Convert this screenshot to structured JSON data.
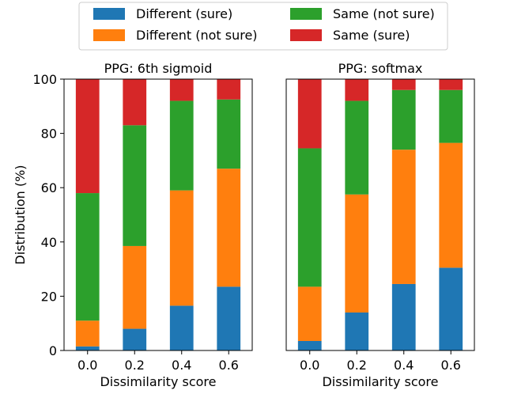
{
  "legend": {
    "position": "top-center",
    "entries": [
      {
        "name": "Different (sure)",
        "color": "#1f77b4"
      },
      {
        "name": "Different (not sure)",
        "color": "#ff7f0e"
      },
      {
        "name": "Same (not sure)",
        "color": "#2ca02c"
      },
      {
        "name": "Same (sure)",
        "color": "#d62728"
      }
    ]
  },
  "chart_data": [
    {
      "type": "bar",
      "stacked": true,
      "title": "PPG: 6th sigmoid",
      "xlabel": "Dissimilarity score",
      "ylabel": "Distribution (%)",
      "ylim": [
        0,
        100
      ],
      "yticks": [
        "0",
        "20",
        "40",
        "60",
        "80",
        "100"
      ],
      "categories": [
        "0.0",
        "0.2",
        "0.4",
        "0.6"
      ],
      "series": [
        {
          "name": "Different (sure)",
          "color": "#1f77b4",
          "values": [
            1.5,
            8,
            16.5,
            23.5
          ]
        },
        {
          "name": "Different (not sure)",
          "color": "#ff7f0e",
          "values": [
            9.5,
            30.5,
            42.5,
            43.5
          ]
        },
        {
          "name": "Same (not sure)",
          "color": "#2ca02c",
          "values": [
            47,
            44.5,
            33,
            25.5
          ]
        },
        {
          "name": "Same (sure)",
          "color": "#d62728",
          "values": [
            42,
            17,
            8,
            7.5
          ]
        }
      ]
    },
    {
      "type": "bar",
      "stacked": true,
      "title": "PPG: softmax",
      "xlabel": "Dissimilarity score",
      "ylabel": "",
      "ylim": [
        0,
        100
      ],
      "yticks": [],
      "categories": [
        "0.0",
        "0.2",
        "0.4",
        "0.6"
      ],
      "series": [
        {
          "name": "Different (sure)",
          "color": "#1f77b4",
          "values": [
            3.5,
            14,
            24.5,
            30.5
          ]
        },
        {
          "name": "Different (not sure)",
          "color": "#ff7f0e",
          "values": [
            20,
            43.5,
            49.5,
            46
          ]
        },
        {
          "name": "Same (not sure)",
          "color": "#2ca02c",
          "values": [
            51,
            34.5,
            22,
            19.5
          ]
        },
        {
          "name": "Same (sure)",
          "color": "#d62728",
          "values": [
            25.5,
            8,
            4,
            4
          ]
        }
      ]
    }
  ]
}
